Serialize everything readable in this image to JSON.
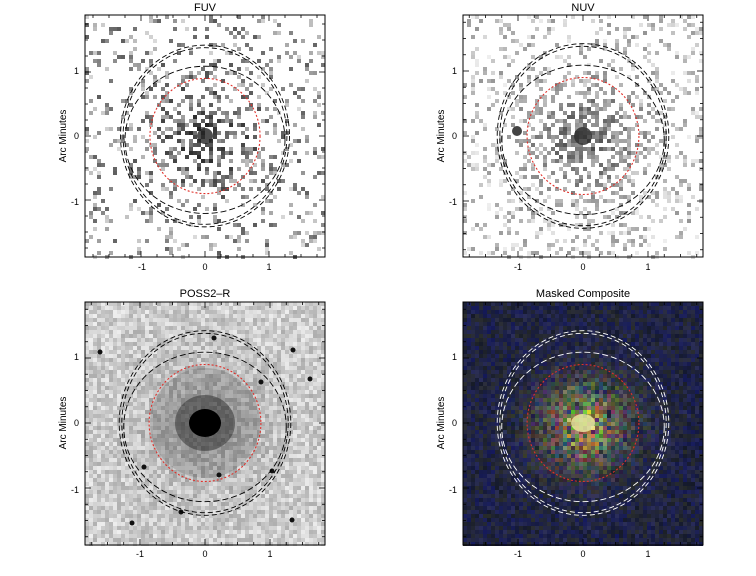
{
  "panels": [
    {
      "title": "FUV",
      "ylabel": "Arc Minutes",
      "xticks": [
        "-1",
        "0",
        "1"
      ],
      "yticks": [
        "1",
        "0",
        "-1"
      ],
      "style": "sparse-gray",
      "ring_color": "#000000"
    },
    {
      "title": "NUV",
      "ylabel": "Arc Minutes",
      "xticks": [
        "-1",
        "0",
        "1"
      ],
      "yticks": [
        "1",
        "0",
        "-1"
      ],
      "style": "medium-gray",
      "ring_color": "#000000"
    },
    {
      "title": "POSS2–R",
      "ylabel": "Arc Minutes",
      "xticks": [
        "-1",
        "0",
        "1"
      ],
      "yticks": [
        "1",
        "0",
        "-1"
      ],
      "style": "optical",
      "ring_color": "#000000"
    },
    {
      "title": "Masked Composite",
      "ylabel": "Arc Minutes",
      "xticks": [
        "-1",
        "0",
        "1"
      ],
      "yticks": [
        "1",
        "0",
        "-1"
      ],
      "style": "composite",
      "ring_color": "#ffffff"
    }
  ],
  "colors": {
    "inner_ellipse": "#e0302a",
    "frame": "#000000"
  }
}
